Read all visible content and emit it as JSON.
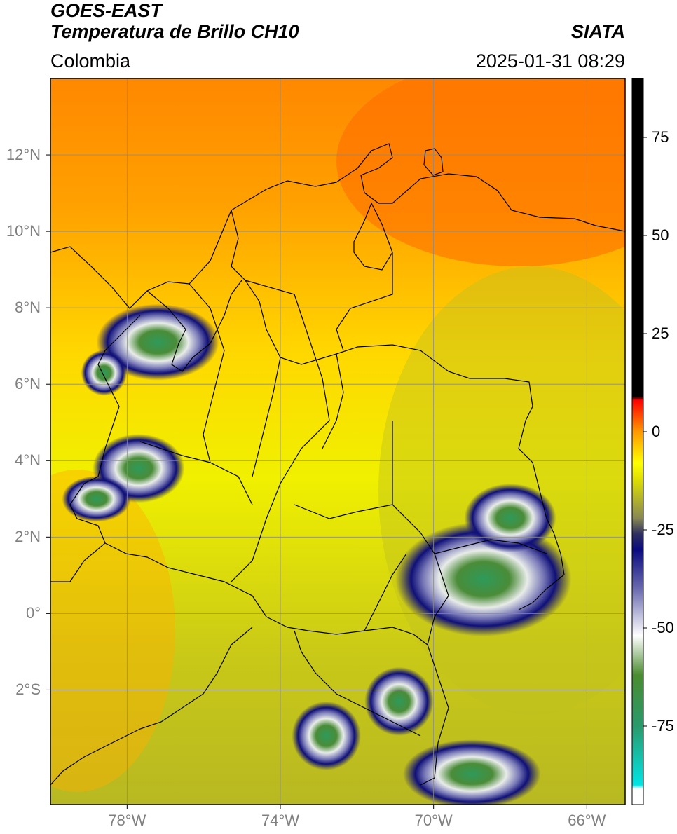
{
  "header": {
    "title_line1": "GOES-EAST",
    "title_line2": "Temperatura de Brillo CH10",
    "region": "Colombia",
    "agency": "SIATA",
    "timestamp": "2025-01-31 08:29"
  },
  "map": {
    "lon_range": [
      -80,
      -65
    ],
    "lat_range": [
      -5,
      14
    ],
    "grid": true,
    "lat_ticks": [
      {
        "value": 12,
        "label": "12°N"
      },
      {
        "value": 10,
        "label": "10°N"
      },
      {
        "value": 8,
        "label": "8°N"
      },
      {
        "value": 6,
        "label": "6°N"
      },
      {
        "value": 4,
        "label": "4°N"
      },
      {
        "value": 2,
        "label": "2°N"
      },
      {
        "value": 0,
        "label": "0°"
      },
      {
        "value": -2,
        "label": "2°S"
      }
    ],
    "lon_ticks": [
      {
        "value": -78,
        "label": "78°W"
      },
      {
        "value": -74,
        "label": "74°W"
      },
      {
        "value": -70,
        "label": "70°W"
      },
      {
        "value": -66,
        "label": "66°W"
      }
    ],
    "cloud_systems": [
      {
        "lon": -77.2,
        "lat": 7.1,
        "rx": 1.6,
        "ry": 1.0
      },
      {
        "lon": -78.6,
        "lat": 6.3,
        "rx": 0.6,
        "ry": 0.6
      },
      {
        "lon": -77.7,
        "lat": 3.8,
        "rx": 1.2,
        "ry": 0.9
      },
      {
        "lon": -78.8,
        "lat": 3.0,
        "rx": 0.9,
        "ry": 0.6
      },
      {
        "lon": -68.7,
        "lat": 0.9,
        "rx": 2.3,
        "ry": 1.5
      },
      {
        "lon": -68.0,
        "lat": 2.5,
        "rx": 1.2,
        "ry": 0.9
      },
      {
        "lon": -70.9,
        "lat": -2.3,
        "rx": 0.9,
        "ry": 0.9
      },
      {
        "lon": -72.8,
        "lat": -3.2,
        "rx": 0.9,
        "ry": 0.9
      },
      {
        "lon": -69.0,
        "lat": -4.2,
        "rx": 1.8,
        "ry": 0.9
      }
    ]
  },
  "colorbar": {
    "range": [
      -95,
      90
    ],
    "ticks": [
      {
        "value": 75,
        "label": "75"
      },
      {
        "value": 50,
        "label": "50"
      },
      {
        "value": 25,
        "label": "25"
      },
      {
        "value": 0,
        "label": "0"
      },
      {
        "value": -25,
        "label": "-25"
      },
      {
        "value": -50,
        "label": "-50"
      },
      {
        "value": -75,
        "label": "-75"
      }
    ],
    "stops": [
      {
        "value": -95,
        "color": "#ffffff"
      },
      {
        "value": -91,
        "color": "#ffffff"
      },
      {
        "value": -90,
        "color": "#00e5e5"
      },
      {
        "value": -75,
        "color": "#2a9a6c"
      },
      {
        "value": -62,
        "color": "#4a8c30"
      },
      {
        "value": -52,
        "color": "#ffffff"
      },
      {
        "value": -40,
        "color": "#6a6ab0"
      },
      {
        "value": -30,
        "color": "#0a0a80"
      },
      {
        "value": -26,
        "color": "#303060"
      },
      {
        "value": -22,
        "color": "#888855"
      },
      {
        "value": -12,
        "color": "#e0e000"
      },
      {
        "value": -8,
        "color": "#ffff00"
      },
      {
        "value": 0,
        "color": "#ff9900"
      },
      {
        "value": 8,
        "color": "#ff0000"
      },
      {
        "value": 9,
        "color": "#000000"
      },
      {
        "value": 90,
        "color": "#000000"
      }
    ]
  }
}
